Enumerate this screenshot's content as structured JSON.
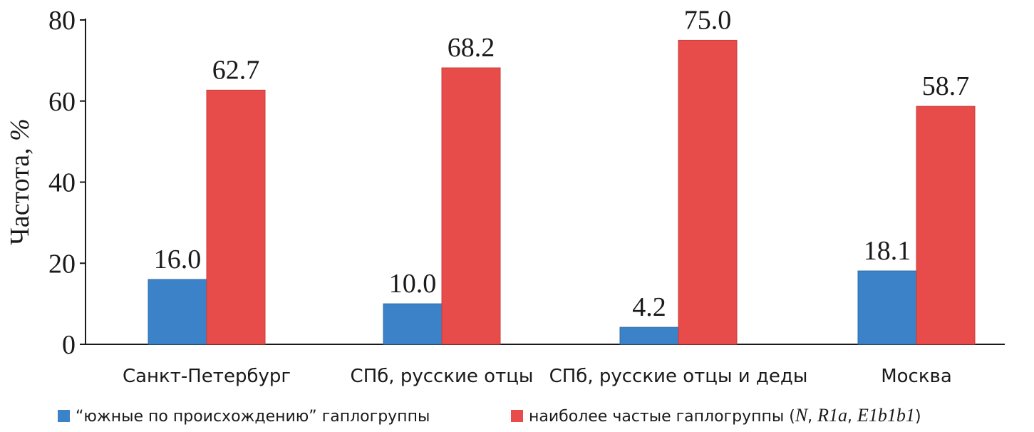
{
  "chart_data": {
    "type": "bar",
    "categories": [
      "Санкт-Петербург",
      "СПб, русские отцы",
      "СПб, русские отцы и деды",
      "Москва"
    ],
    "series": [
      {
        "name": "“южные по происхождению” гаплогруппы",
        "color": "#3b82c8",
        "values": [
          16.0,
          10.0,
          4.2,
          18.1
        ],
        "labels": [
          "16.0",
          "10.0",
          "4.2",
          "18.1"
        ]
      },
      {
        "name": "наиболее частые гаплогруппы (N, R1a, E1b1b1)",
        "color": "#e84c4a",
        "values": [
          62.7,
          68.2,
          75.0,
          58.7
        ],
        "labels": [
          "62.7",
          "68.2",
          "75.0",
          "58.7"
        ]
      }
    ],
    "legend_parts": {
      "series1": "“южные по происхождению” гаплогруппы",
      "series2_prefix": "наиболее частые гаплогруппы (",
      "series2_n": "N",
      "series2_sep1": ", ",
      "series2_r1a": "R1a",
      "series2_sep2": ", ",
      "series2_e1b1b1": "E1b1b1",
      "series2_suffix": ")"
    },
    "ylabel_main": "Частота, ",
    "ylabel_unit": "%",
    "xlabel": "",
    "ylim": [
      0,
      80
    ],
    "yticks": [
      "0",
      "20",
      "40",
      "60",
      "80"
    ],
    "grid": false,
    "legend_position": "bottom"
  }
}
